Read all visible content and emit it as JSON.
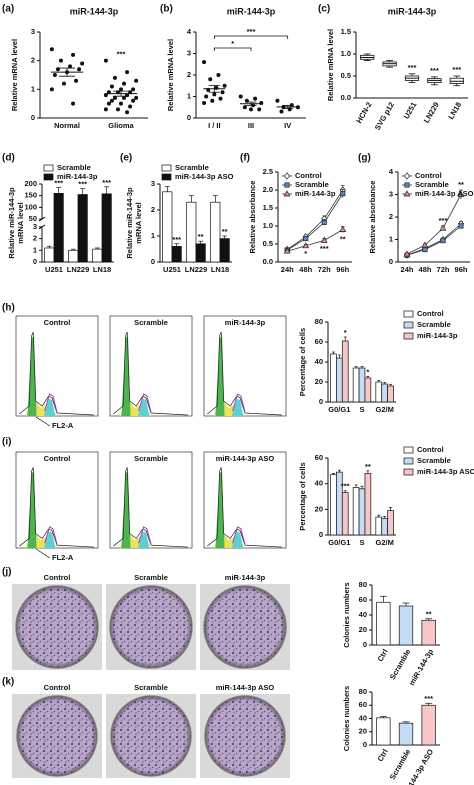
{
  "chart_data": [
    {
      "type": "dot",
      "label": "(a)",
      "title": "miR-144-3p",
      "ylabel": "Relative mRNA level",
      "categories": [
        "Normal",
        "Glioma"
      ],
      "points": [
        [
          2.4,
          2.2,
          2.0,
          1.9,
          1.8,
          1.7,
          1.7,
          1.6,
          1.5,
          1.3,
          1.2,
          1.0,
          0.5
        ],
        [
          2.0,
          1.6,
          1.4,
          1.3,
          1.2,
          1.1,
          1.0,
          1.0,
          0.9,
          0.9,
          0.9,
          0.8,
          0.8,
          0.7,
          0.7,
          0.7,
          0.6,
          0.6,
          0.5,
          0.5,
          0.4,
          0.3,
          0.3,
          0.2
        ]
      ],
      "color": "#111111",
      "ylim": [
        0,
        3
      ],
      "yticks": [
        0,
        1,
        2,
        3
      ],
      "annotations": [
        null,
        "***"
      ]
    },
    {
      "type": "dot",
      "label": "(b)",
      "title": "miR-144-3p",
      "ylabel": "Relative mRNA level",
      "categories": [
        "I / II",
        "III",
        "IV"
      ],
      "points": [
        [
          2.6,
          2.0,
          1.8,
          1.5,
          1.4,
          1.3,
          1.2,
          1.1,
          1.0,
          0.9,
          0.8,
          0.7
        ],
        [
          1.0,
          0.9,
          0.8,
          0.7,
          0.6,
          0.5,
          0.4,
          0.4
        ],
        [
          0.8,
          0.6,
          0.5,
          0.5,
          0.4,
          0.3
        ]
      ],
      "color": "#111111",
      "ylim": [
        0,
        4
      ],
      "yticks": [
        0,
        1,
        2,
        3,
        4
      ],
      "comparisons": [
        {
          "pair": [
            "I / II",
            "III"
          ],
          "text": "*"
        },
        {
          "pair": [
            "I / II",
            "IV"
          ],
          "text": "***"
        }
      ]
    },
    {
      "type": "box",
      "label": "(c)",
      "title": "miR-144-3p",
      "ylabel": "Relative mRNA level",
      "categories": [
        "HCN-2",
        "SVG p12",
        "U251",
        "LN229",
        "LN18"
      ],
      "boxes": [
        [
          0.85,
          0.88,
          0.92,
          0.97,
          1.0
        ],
        [
          0.7,
          0.73,
          0.78,
          0.82,
          0.85
        ],
        [
          0.35,
          0.4,
          0.45,
          0.5,
          0.55
        ],
        [
          0.3,
          0.35,
          0.4,
          0.44,
          0.48
        ],
        [
          0.28,
          0.33,
          0.38,
          0.45,
          0.5
        ]
      ],
      "ylim": [
        0,
        1.5
      ],
      "yticks": [
        {
          "value": 0,
          "label": "0.0"
        },
        0.5,
        {
          "value": 1,
          "label": "1.0"
        },
        1.5
      ],
      "rotate_labels": true,
      "annotations": [
        null,
        null,
        "***",
        "***",
        "***"
      ]
    },
    {
      "type": "bar",
      "label": "(d)",
      "ylabel": [
        "Relative miR-144-3p",
        "mRNA level"
      ],
      "categories": [
        "U251",
        "LN229",
        "LN18"
      ],
      "series": [
        {
          "name": "Scramble",
          "color": "#ffffff",
          "values": [
            1.2,
            1.0,
            1.1
          ],
          "errors": [
            0.15,
            0.1,
            0.1
          ]
        },
        {
          "name": "miR-144-3p",
          "color": "#111111",
          "values": [
            160,
            155,
            158
          ],
          "errors": [
            25,
            25,
            30
          ]
        }
      ],
      "ylim": [
        0,
        200
      ],
      "axis_break": [
        3,
        50
      ],
      "yticks": [
        0,
        1,
        2,
        3,
        50,
        100,
        150,
        200
      ],
      "legend": "top",
      "annotations": [
        "***",
        "***",
        "***"
      ]
    },
    {
      "type": "bar",
      "label": "(e)",
      "ylabel": [
        "Relative miR-144-3p",
        "mRNA level"
      ],
      "categories": [
        "U251",
        "LN229",
        "LN18"
      ],
      "series": [
        {
          "name": "Scramble",
          "color": "#ffffff",
          "values": [
            2.7,
            2.3,
            2.3
          ],
          "errors": [
            0.2,
            0.25,
            0.25
          ]
        },
        {
          "name": "miR-144-3p ASO",
          "color": "#111111",
          "values": [
            0.6,
            0.7,
            0.9
          ],
          "errors": [
            0.1,
            0.1,
            0.1
          ]
        }
      ],
      "ylim": [
        0,
        3
      ],
      "yticks": [
        0,
        1,
        2,
        3
      ],
      "legend": "top",
      "annotations": [
        "***",
        "**",
        "**"
      ]
    },
    {
      "type": "line",
      "label": "(f)",
      "ylabel": "Relative absorbance",
      "categories": [
        "24h",
        "48h",
        "72h",
        "96h"
      ],
      "series": [
        {
          "name": "Control",
          "color": "#ffffff",
          "marker": "diamond",
          "values": [
            0.35,
            0.7,
            1.2,
            2.0
          ],
          "errors": [
            0.03,
            0.05,
            0.08,
            0.12
          ]
        },
        {
          "name": "Scramble",
          "color": "#5b86c9",
          "marker": "square",
          "values": [
            0.33,
            0.65,
            1.1,
            1.9
          ],
          "errors": [
            0.03,
            0.05,
            0.08,
            0.12
          ]
        },
        {
          "name": "miR-144-3p",
          "color": "#e08a8a",
          "marker": "triangle",
          "values": [
            0.3,
            0.45,
            0.6,
            0.9
          ],
          "errors": [
            0.03,
            0.04,
            0.05,
            0.08
          ]
        }
      ],
      "ylim": [
        0,
        2.5
      ],
      "yticks": [
        {
          "value": 0,
          "label": "0.0"
        },
        0.5,
        {
          "value": 1,
          "label": "1.0"
        },
        1.5,
        {
          "value": 2,
          "label": "2.0"
        },
        2.5
      ],
      "legend": "top-left",
      "annotations": [
        null,
        "*",
        "***",
        "**"
      ],
      "annotation_position": "below"
    },
    {
      "type": "line",
      "label": "(g)",
      "ylabel": "Relative absorbance",
      "categories": [
        "24h",
        "48h",
        "72h",
        "96h"
      ],
      "series": [
        {
          "name": "Control",
          "color": "#ffffff",
          "marker": "diamond",
          "values": [
            0.3,
            0.6,
            1.0,
            1.7
          ],
          "errors": [
            0.03,
            0.05,
            0.07,
            0.1
          ]
        },
        {
          "name": "Scramble",
          "color": "#5b86c9",
          "marker": "square",
          "values": [
            0.3,
            0.55,
            0.95,
            1.6
          ],
          "errors": [
            0.03,
            0.05,
            0.07,
            0.1
          ]
        },
        {
          "name": "miR-144-3p ASO",
          "color": "#e08a8a",
          "marker": "triangle",
          "values": [
            0.35,
            0.75,
            1.5,
            3.0
          ],
          "errors": [
            0.03,
            0.06,
            0.1,
            0.2
          ]
        }
      ],
      "ylim": [
        0,
        4
      ],
      "yticks": [
        0,
        1,
        2,
        3,
        4
      ],
      "legend": "top-left",
      "annotations": [
        null,
        null,
        "***",
        "**"
      ],
      "annotation_position": "above"
    },
    {
      "type": "flow",
      "label": "(h)",
      "titles": [
        "Control",
        "Scramble",
        "miR-144-3p"
      ],
      "xlabel": "FL2-A"
    },
    {
      "type": "bar",
      "ylabel": "Percentage of cells",
      "categories": [
        "G0/G1",
        "S",
        "G2/M"
      ],
      "series": [
        {
          "name": "Control",
          "color": "#ffffff",
          "values": [
            48,
            34,
            20
          ],
          "errors": [
            2,
            1.5,
            1.5
          ]
        },
        {
          "name": "Scramble",
          "color": "#c5dcf5",
          "values": [
            44,
            34,
            18
          ],
          "errors": [
            3,
            1.5,
            1.5
          ]
        },
        {
          "name": "miR-144-3p",
          "color": "#f6c6c8",
          "values": [
            61,
            24,
            16
          ],
          "errors": [
            4,
            1.5,
            1.5
          ]
        }
      ],
      "ylim": [
        0,
        80
      ],
      "yticks": [
        0,
        20,
        40,
        60,
        80
      ],
      "legend": "right",
      "annotations": [
        "*",
        "*",
        null
      ]
    },
    {
      "type": "flow",
      "label": "(i)",
      "titles": [
        "Control",
        "Scramble",
        "miR-144-3p ASO"
      ],
      "xlabel": "FL2-A"
    },
    {
      "type": "bar",
      "ylabel": "Percentage of cells",
      "categories": [
        "G0/G1",
        "S",
        "G2/M"
      ],
      "series": [
        {
          "name": "Control",
          "color": "#ffffff",
          "values": [
            47,
            37,
            14
          ],
          "errors": [
            1,
            2,
            1.5
          ]
        },
        {
          "name": "Scramble",
          "color": "#c5dcf5",
          "values": [
            49,
            36,
            13
          ],
          "errors": [
            1.5,
            2,
            1.5
          ]
        },
        {
          "name": "miR-144-3p ASO",
          "color": "#f6c6c8",
          "values": [
            33,
            48,
            19
          ],
          "errors": [
            1.5,
            2,
            2.5
          ]
        }
      ],
      "ylim": [
        0,
        60
      ],
      "yticks": [
        0,
        20,
        40,
        60
      ],
      "legend": "right",
      "annotations": [
        "***",
        "**",
        null
      ]
    },
    {
      "type": "dish",
      "label": "(j)",
      "titles": [
        "Control",
        "Scramble",
        "miR-144-3p"
      ]
    },
    {
      "type": "bar",
      "ylabel": "Colonies numbers",
      "categories": [
        "Ctrl",
        "Scramble",
        "miR-144-3p"
      ],
      "values": [
        57,
        52,
        33
      ],
      "errors": [
        8,
        4,
        2
      ],
      "colors": [
        "#ffffff",
        "#c5dcf5",
        "#f6c6c8"
      ],
      "ylim": [
        0,
        80
      ],
      "yticks": [
        0,
        20,
        40,
        60,
        80
      ],
      "rotate_labels": true,
      "annotations": [
        null,
        null,
        "**"
      ]
    },
    {
      "type": "dish",
      "label": "(k)",
      "titles": [
        "Control",
        "Scramble",
        "miR-144-3p ASO"
      ]
    },
    {
      "type": "bar",
      "ylabel": "Colonies numbers",
      "categories": [
        "Ctrl",
        "Scramble",
        "miR-144-3p ASO"
      ],
      "values": [
        41,
        33,
        60
      ],
      "errors": [
        2,
        2,
        3
      ],
      "colors": [
        "#ffffff",
        "#c5dcf5",
        "#f6c6c8"
      ],
      "ylim": [
        0,
        80
      ],
      "yticks": [
        0,
        20,
        40,
        60,
        80
      ],
      "rotate_labels": true,
      "annotations": [
        null,
        null,
        "***"
      ]
    }
  ]
}
